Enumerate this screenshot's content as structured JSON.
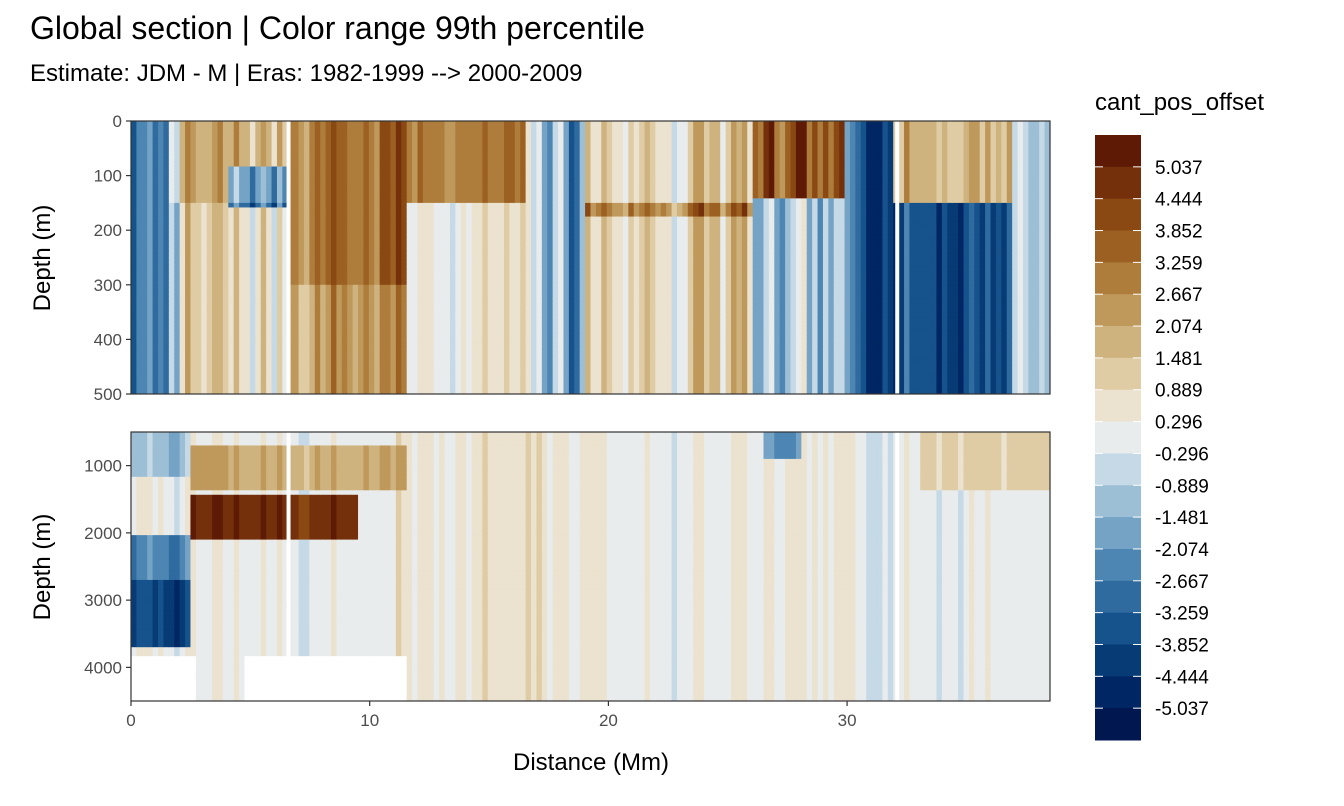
{
  "chart_data": {
    "type": "heatmap",
    "title": "Global section | Color range 99th percentile",
    "subtitle": "Estimate: JDM - M | Eras: 1982-1999 --> 2000-2009",
    "xlabel": "Distance (Mm)",
    "ylabel": "Depth (m)",
    "xlim": [
      0,
      38.5
    ],
    "x_ticks": [
      0,
      10,
      20,
      30
    ],
    "panels": [
      {
        "ylim": [
          0,
          500
        ],
        "y_ticks": [
          0,
          100,
          200,
          300,
          400,
          500
        ],
        "reversed": true
      },
      {
        "ylim": [
          500,
          4500
        ],
        "y_ticks": [
          1000,
          2000,
          3000,
          4000
        ],
        "reversed": true
      }
    ],
    "gaps_x": [
      6.6,
      32.1
    ],
    "legend": {
      "title": "cant_pos_offset",
      "position": "right",
      "labels": [
        "5.037",
        "4.444",
        "3.852",
        "3.259",
        "2.667",
        "2.074",
        "1.481",
        "0.889",
        "0.296",
        "-0.296",
        "-0.889",
        "-1.481",
        "-2.074",
        "-2.667",
        "-3.259",
        "-3.852",
        "-4.444",
        "-5.037"
      ],
      "colors": [
        "#5e1a05",
        "#74300a",
        "#8a4812",
        "#9c6122",
        "#ae7d3c",
        "#bf995b",
        "#cfb37f",
        "#dfcca5",
        "#ebe2cf",
        "#e9ecec",
        "#c5d9e6",
        "#9dbfd6",
        "#74a3c6",
        "#4d86b2",
        "#2f6b9f",
        "#16528b",
        "#073b75",
        "#002663",
        "#00174f"
      ]
    },
    "grid": true
  }
}
